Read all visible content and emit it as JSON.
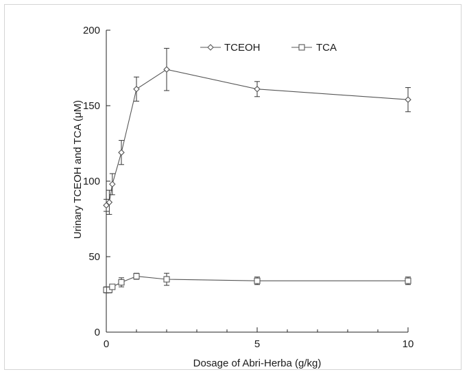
{
  "chart_data": {
    "type": "line",
    "title": "",
    "xlabel": "Dosage of Abri-Herba (g/kg)",
    "ylabel": "Urinary TCEOH and TCA (μM)",
    "xlim": [
      0,
      10
    ],
    "ylim": [
      0,
      200
    ],
    "x_ticks": [
      0,
      5,
      10
    ],
    "x_minor_ticks": [
      1,
      2,
      3,
      4,
      6,
      7,
      8,
      9
    ],
    "y_ticks": [
      0,
      50,
      100,
      150,
      200
    ],
    "grid": false,
    "legend_position": "top-center",
    "series": [
      {
        "name": "TCEOH",
        "marker": "diamond",
        "color": "#555555",
        "x": [
          0,
          0.1,
          0.2,
          0.5,
          1,
          2,
          5,
          10
        ],
        "y": [
          84,
          86,
          98,
          119,
          161,
          174,
          161,
          154
        ],
        "error": [
          4,
          8,
          7,
          8,
          8,
          14,
          5,
          8
        ]
      },
      {
        "name": "TCA",
        "marker": "square",
        "color": "#555555",
        "x": [
          0,
          0.1,
          0.2,
          0.5,
          1,
          2,
          5,
          10
        ],
        "y": [
          28,
          28,
          30,
          33,
          37,
          35,
          34,
          34
        ],
        "error": [
          2,
          2,
          1.5,
          3,
          2,
          4,
          2.5,
          2.5
        ]
      }
    ]
  }
}
